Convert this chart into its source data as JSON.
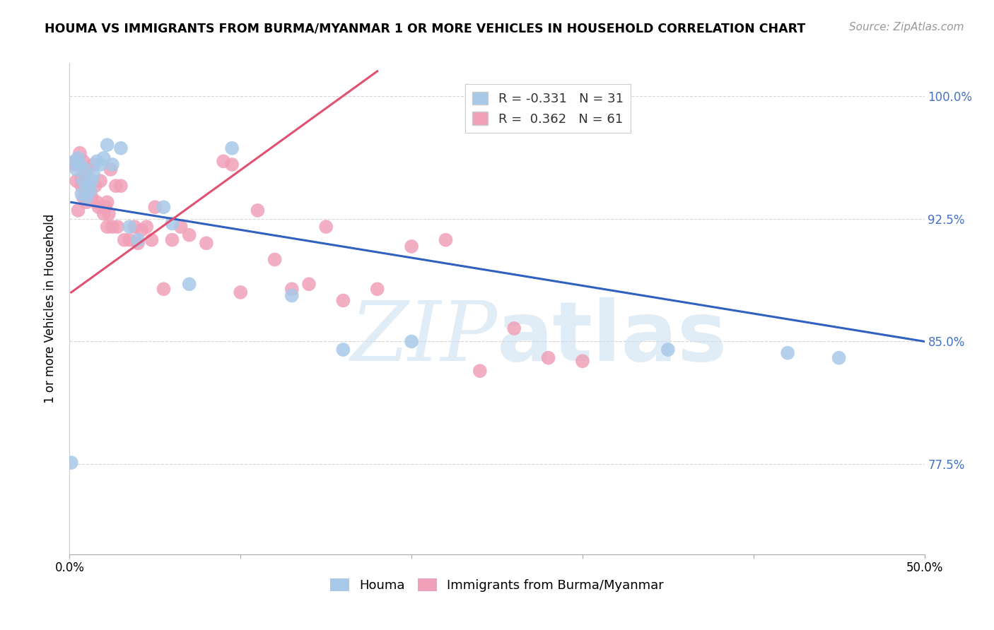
{
  "title": "HOUMA VS IMMIGRANTS FROM BURMA/MYANMAR 1 OR MORE VEHICLES IN HOUSEHOLD CORRELATION CHART",
  "source": "Source: ZipAtlas.com",
  "ylabel": "1 or more Vehicles in Household",
  "xlim": [
    0.0,
    0.5
  ],
  "ylim": [
    0.72,
    1.02
  ],
  "yticks": [
    0.775,
    0.85,
    0.925,
    1.0
  ],
  "ytick_labels": [
    "77.5%",
    "85.0%",
    "92.5%",
    "100.0%"
  ],
  "xticks": [
    0.0,
    0.1,
    0.2,
    0.3,
    0.4,
    0.5
  ],
  "xtick_labels": [
    "0.0%",
    "",
    "",
    "",
    "",
    "50.0%"
  ],
  "houma_R": -0.331,
  "houma_N": 31,
  "burma_R": 0.362,
  "burma_N": 61,
  "houma_color": "#a8c8e8",
  "burma_color": "#f0a0b8",
  "houma_line_color": "#3060c0",
  "burma_line_color": "#e05070",
  "legend_label_houma": "Houma",
  "legend_label_burma": "Immigrants from Burma/Myanmar",
  "watermark": "ZIPatlas",
  "houma_x": [
    0.003,
    0.004,
    0.005,
    0.006,
    0.007,
    0.008,
    0.009,
    0.01,
    0.011,
    0.012,
    0.013,
    0.014,
    0.016,
    0.018,
    0.02,
    0.022,
    0.025,
    0.03,
    0.035,
    0.04,
    0.055,
    0.06,
    0.07,
    0.095,
    0.13,
    0.16,
    0.2,
    0.35,
    0.42,
    0.45,
    0.001
  ],
  "houma_y": [
    0.96,
    0.955,
    0.962,
    0.958,
    0.94,
    0.948,
    0.955,
    0.938,
    0.945,
    0.942,
    0.948,
    0.952,
    0.96,
    0.958,
    0.962,
    0.97,
    0.958,
    0.968,
    0.92,
    0.912,
    0.932,
    0.922,
    0.885,
    0.968,
    0.878,
    0.845,
    0.85,
    0.845,
    0.843,
    0.84,
    0.776
  ],
  "burma_x": [
    0.002,
    0.003,
    0.004,
    0.005,
    0.005,
    0.006,
    0.007,
    0.007,
    0.008,
    0.008,
    0.009,
    0.009,
    0.01,
    0.01,
    0.011,
    0.012,
    0.013,
    0.014,
    0.015,
    0.016,
    0.017,
    0.018,
    0.02,
    0.021,
    0.022,
    0.022,
    0.023,
    0.024,
    0.025,
    0.027,
    0.028,
    0.03,
    0.032,
    0.035,
    0.038,
    0.04,
    0.042,
    0.045,
    0.048,
    0.05,
    0.055,
    0.06,
    0.065,
    0.07,
    0.08,
    0.09,
    0.095,
    0.1,
    0.11,
    0.12,
    0.13,
    0.14,
    0.15,
    0.16,
    0.18,
    0.2,
    0.22,
    0.24,
    0.26,
    0.28,
    0.3
  ],
  "burma_y": [
    0.958,
    0.96,
    0.948,
    0.958,
    0.93,
    0.965,
    0.95,
    0.945,
    0.96,
    0.938,
    0.952,
    0.945,
    0.955,
    0.935,
    0.948,
    0.942,
    0.938,
    0.958,
    0.945,
    0.935,
    0.932,
    0.948,
    0.928,
    0.932,
    0.935,
    0.92,
    0.928,
    0.955,
    0.92,
    0.945,
    0.92,
    0.945,
    0.912,
    0.912,
    0.92,
    0.91,
    0.918,
    0.92,
    0.912,
    0.932,
    0.882,
    0.912,
    0.92,
    0.915,
    0.91,
    0.96,
    0.958,
    0.88,
    0.93,
    0.9,
    0.882,
    0.885,
    0.92,
    0.875,
    0.882,
    0.908,
    0.912,
    0.832,
    0.858,
    0.84,
    0.838
  ],
  "houma_line_x0": 0.001,
  "houma_line_x1": 0.5,
  "houma_line_y0": 0.935,
  "houma_line_y1": 0.85,
  "burma_line_x0": 0.001,
  "burma_line_x1": 0.18,
  "burma_line_y0": 0.88,
  "burma_line_y1": 1.015
}
